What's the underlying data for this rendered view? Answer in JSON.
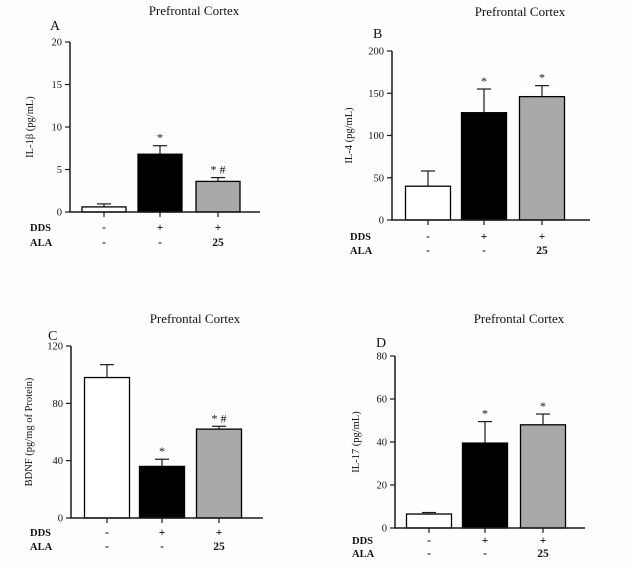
{
  "figure": {
    "background": "#fefefe",
    "bar_fills": [
      "#ffffff",
      "#000000",
      "#a9a9a9"
    ],
    "bar_border": "#000000",
    "axis_color": "#1a1a1a"
  },
  "chart_data": [
    {
      "type": "bar",
      "panel": "A",
      "title": "Prefrontal Cortex",
      "ylabel": "IL-1β (pg/mL)",
      "ylim": [
        0,
        20
      ],
      "yticks": [
        0,
        5,
        10,
        15,
        20
      ],
      "values": [
        0.6,
        6.8,
        3.6
      ],
      "errors": [
        0.35,
        1.0,
        0.45
      ],
      "annotations": [
        "",
        "*",
        "* #"
      ],
      "x_rows": [
        {
          "label": "DDS",
          "values": [
            "-",
            "+",
            "+"
          ]
        },
        {
          "label": "ALA",
          "values": [
            "-",
            "-",
            "25"
          ]
        }
      ],
      "grid": false,
      "legend": false
    },
    {
      "type": "bar",
      "panel": "B",
      "title": "Prefrontal Cortex",
      "ylabel": "IL-4 (pg/mL)",
      "ylim": [
        0,
        200
      ],
      "yticks": [
        0,
        50,
        100,
        150,
        200
      ],
      "values": [
        40,
        127,
        146
      ],
      "errors": [
        18,
        28,
        13
      ],
      "annotations": [
        "",
        "*",
        "*"
      ],
      "x_rows": [
        {
          "label": "DDS",
          "values": [
            "-",
            "+",
            "+"
          ]
        },
        {
          "label": "ALA",
          "values": [
            "-",
            "-",
            "25"
          ]
        }
      ],
      "grid": false,
      "legend": false
    },
    {
      "type": "bar",
      "panel": "C",
      "title": "Prefrontal Cortex",
      "ylabel": "BDNF (pg/mg of Protein)",
      "ylim": [
        0,
        120
      ],
      "yticks": [
        0,
        40,
        80,
        120
      ],
      "values": [
        98,
        36,
        62
      ],
      "errors": [
        9,
        5,
        2
      ],
      "annotations": [
        "",
        "*",
        "* #"
      ],
      "x_rows": [
        {
          "label": "DDS",
          "values": [
            "-",
            "+",
            "+"
          ]
        },
        {
          "label": "ALA",
          "values": [
            "-",
            "-",
            "25"
          ]
        }
      ],
      "grid": false,
      "legend": false
    },
    {
      "type": "bar",
      "panel": "D",
      "title": "Prefrontal Cortex",
      "ylabel": "IL-17 (pg/mL)",
      "ylim": [
        0,
        80
      ],
      "yticks": [
        0,
        20,
        40,
        60,
        80
      ],
      "values": [
        6.5,
        39.5,
        48
      ],
      "errors": [
        0.7,
        10,
        5
      ],
      "annotations": [
        "",
        "*",
        "*"
      ],
      "x_rows": [
        {
          "label": "DDS",
          "values": [
            "-",
            "+",
            "+"
          ]
        },
        {
          "label": "ALA",
          "values": [
            "-",
            "-",
            "25"
          ]
        }
      ],
      "grid": false,
      "legend": false
    }
  ]
}
